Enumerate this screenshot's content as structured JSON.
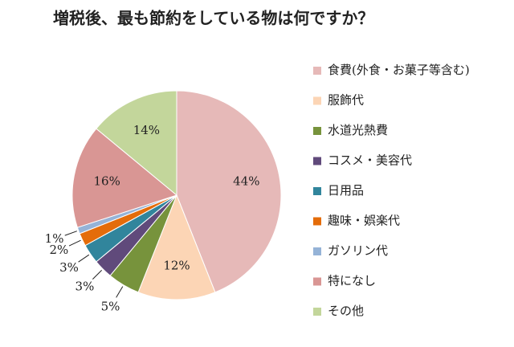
{
  "chart_data": {
    "type": "pie",
    "title": "増税後、最も節約をしている物は何ですか？",
    "categories": [
      "食費(外食・お菓子等含む)",
      "服飾代",
      "水道光熱費",
      "コスメ・美容代",
      "日用品",
      "趣味・娯楽代",
      "ガソリン代",
      "特になし",
      "その他"
    ],
    "values": [
      44,
      12,
      5,
      3,
      3,
      2,
      1,
      16,
      14
    ],
    "value_labels": [
      "44%",
      "12%",
      "5%",
      "3%",
      "3%",
      "2%",
      "1%",
      "16%",
      "14%"
    ],
    "colors": [
      "#e6b9b8",
      "#fcd5b5",
      "#77933c",
      "#604a7b",
      "#31859c",
      "#e46c0a",
      "#95b3d7",
      "#d99694",
      "#c3d69b"
    ],
    "legend": "right"
  }
}
